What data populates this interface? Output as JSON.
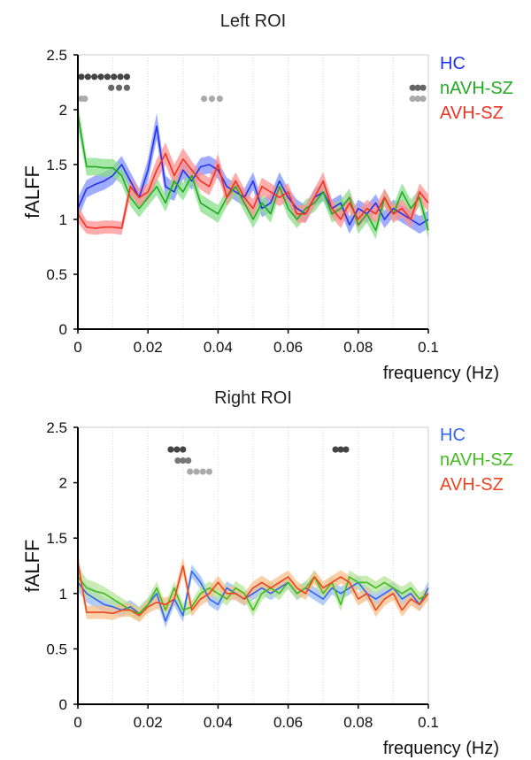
{
  "chart_data": [
    {
      "type": "line",
      "title": "Left ROI",
      "xlabel": "frequency (Hz)",
      "ylabel": "fALFF",
      "xlim": [
        0,
        0.1
      ],
      "ylim": [
        0,
        2.5
      ],
      "xticks": [
        "0",
        "0.02",
        "0.04",
        "0.06",
        "0.08",
        "0.1"
      ],
      "yticks": [
        "0",
        "0.5",
        "1",
        "1.5",
        "2",
        "2.5"
      ],
      "grid": "x",
      "legend_position": "right",
      "x": [
        0,
        0.0025,
        0.005,
        0.0075,
        0.01,
        0.0125,
        0.015,
        0.0175,
        0.02,
        0.0225,
        0.025,
        0.0275,
        0.03,
        0.0325,
        0.035,
        0.0375,
        0.04,
        0.0425,
        0.045,
        0.0475,
        0.05,
        0.0525,
        0.055,
        0.0575,
        0.06,
        0.0625,
        0.065,
        0.0675,
        0.07,
        0.0725,
        0.075,
        0.0775,
        0.08,
        0.0825,
        0.085,
        0.0875,
        0.09,
        0.0925,
        0.095,
        0.0975,
        0.1
      ],
      "series": [
        {
          "name": "HC",
          "color": "#2233ee",
          "band_color": "#8090ff",
          "values": [
            1.1,
            1.28,
            1.32,
            1.35,
            1.4,
            1.5,
            1.35,
            1.2,
            1.45,
            1.85,
            1.3,
            1.25,
            1.45,
            1.35,
            1.48,
            1.5,
            1.45,
            1.3,
            1.25,
            1.2,
            1.35,
            1.1,
            1.15,
            1.35,
            1.2,
            1.1,
            1.05,
            1.2,
            1.25,
            1.1,
            1.15,
            0.95,
            1.1,
            1.05,
            1.15,
            1.0,
            1.1,
            1.05,
            1.0,
            0.95,
            1.0
          ],
          "band": [
            0.1,
            0.08,
            0.08,
            0.08,
            0.08,
            0.08,
            0.08,
            0.08,
            0.1,
            0.12,
            0.1,
            0.08,
            0.08,
            0.08,
            0.08,
            0.08,
            0.08,
            0.08,
            0.08,
            0.08,
            0.08,
            0.08,
            0.08,
            0.08,
            0.08,
            0.08,
            0.08,
            0.08,
            0.08,
            0.08,
            0.08,
            0.08,
            0.08,
            0.08,
            0.08,
            0.08,
            0.08,
            0.08,
            0.08,
            0.08,
            0.08
          ]
        },
        {
          "name": "nAVH-SZ",
          "color": "#22aa22",
          "band_color": "#88dd88",
          "values": [
            1.95,
            1.48,
            1.48,
            1.47,
            1.47,
            1.4,
            1.2,
            1.1,
            1.2,
            1.3,
            1.15,
            1.35,
            1.25,
            1.4,
            1.15,
            1.1,
            1.05,
            1.2,
            1.3,
            1.15,
            1.0,
            1.15,
            1.05,
            1.3,
            1.1,
            1.0,
            1.1,
            1.15,
            1.25,
            1.05,
            1.1,
            1.2,
            0.95,
            1.05,
            0.9,
            1.2,
            1.05,
            1.25,
            1.1,
            1.2,
            0.9
          ],
          "band": [
            0.12,
            0.08,
            0.08,
            0.08,
            0.08,
            0.08,
            0.08,
            0.08,
            0.08,
            0.08,
            0.08,
            0.08,
            0.08,
            0.08,
            0.08,
            0.08,
            0.08,
            0.08,
            0.08,
            0.08,
            0.08,
            0.08,
            0.08,
            0.08,
            0.08,
            0.08,
            0.08,
            0.08,
            0.08,
            0.08,
            0.08,
            0.08,
            0.08,
            0.08,
            0.08,
            0.08,
            0.08,
            0.08,
            0.08,
            0.08,
            0.08
          ]
        },
        {
          "name": "AVH-SZ",
          "color": "#ee3322",
          "band_color": "#ff9090",
          "values": [
            1.05,
            0.93,
            0.92,
            0.93,
            0.93,
            0.92,
            1.3,
            1.2,
            1.25,
            1.45,
            1.6,
            1.4,
            1.55,
            1.45,
            1.35,
            1.3,
            1.5,
            1.2,
            1.35,
            1.2,
            1.1,
            1.3,
            1.25,
            1.2,
            1.25,
            1.05,
            1.05,
            1.2,
            1.35,
            1.1,
            1.0,
            1.15,
            1.0,
            1.1,
            1.05,
            1.2,
            1.05,
            1.1,
            1.0,
            1.25,
            1.15
          ],
          "band": [
            0.08,
            0.06,
            0.06,
            0.06,
            0.06,
            0.06,
            0.08,
            0.08,
            0.08,
            0.1,
            0.1,
            0.1,
            0.1,
            0.08,
            0.08,
            0.08,
            0.1,
            0.08,
            0.08,
            0.08,
            0.08,
            0.08,
            0.08,
            0.08,
            0.08,
            0.08,
            0.08,
            0.08,
            0.08,
            0.08,
            0.08,
            0.08,
            0.08,
            0.08,
            0.08,
            0.08,
            0.08,
            0.08,
            0.08,
            0.08,
            0.08
          ]
        }
      ],
      "significance_markers": [
        {
          "x_start": 0.0,
          "x_end": 0.015,
          "level": 2.3,
          "color": "#444444"
        },
        {
          "x_start": 0.0085,
          "x_end": 0.015,
          "level": 2.2,
          "color": "#666666"
        },
        {
          "x_start": 0.0,
          "x_end": 0.003,
          "level": 2.1,
          "color": "#aaaaaa"
        },
        {
          "x_start": 0.035,
          "x_end": 0.0415,
          "level": 2.1,
          "color": "#aaaaaa"
        },
        {
          "x_start": 0.0945,
          "x_end": 0.0995,
          "level": 2.2,
          "color": "#666666"
        },
        {
          "x_start": 0.0945,
          "x_end": 0.0995,
          "level": 2.1,
          "color": "#aaaaaa"
        }
      ]
    },
    {
      "type": "line",
      "title": "Right ROI",
      "xlabel": "frequency (Hz)",
      "ylabel": "fALFF",
      "xlim": [
        0,
        0.1
      ],
      "ylim": [
        0,
        2.5
      ],
      "xticks": [
        "0",
        "0.02",
        "0.04",
        "0.06",
        "0.08",
        "0.1"
      ],
      "yticks": [
        "0",
        "0.5",
        "1",
        "1.5",
        "2",
        "2.5"
      ],
      "grid": "x",
      "legend_position": "right",
      "x": [
        0,
        0.0025,
        0.005,
        0.0075,
        0.01,
        0.0125,
        0.015,
        0.0175,
        0.02,
        0.0225,
        0.025,
        0.0275,
        0.03,
        0.0325,
        0.035,
        0.0375,
        0.04,
        0.0425,
        0.045,
        0.0475,
        0.05,
        0.0525,
        0.055,
        0.0575,
        0.06,
        0.0625,
        0.065,
        0.0675,
        0.07,
        0.0725,
        0.075,
        0.0775,
        0.08,
        0.0825,
        0.085,
        0.0875,
        0.09,
        0.0925,
        0.095,
        0.0975,
        0.1
      ],
      "series": [
        {
          "name": "HC",
          "color": "#3366ee",
          "band_color": "#99bbf5",
          "values": [
            1.1,
            1.0,
            0.95,
            0.9,
            0.88,
            0.85,
            0.88,
            0.82,
            0.9,
            1.0,
            0.75,
            0.95,
            0.8,
            1.2,
            1.1,
            0.95,
            0.9,
            1.05,
            1.0,
            0.95,
            1.0,
            1.05,
            1.0,
            1.05,
            1.1,
            1.0,
            1.05,
            1.0,
            0.95,
            1.05,
            1.0,
            1.05,
            1.1,
            1.0,
            0.95,
            1.0,
            1.05,
            0.95,
            1.0,
            0.9,
            1.05
          ],
          "band": [
            0.08,
            0.08,
            0.08,
            0.06,
            0.06,
            0.06,
            0.06,
            0.06,
            0.06,
            0.06,
            0.06,
            0.06,
            0.06,
            0.06,
            0.06,
            0.06,
            0.06,
            0.06,
            0.06,
            0.06,
            0.06,
            0.06,
            0.06,
            0.06,
            0.06,
            0.06,
            0.06,
            0.06,
            0.06,
            0.06,
            0.06,
            0.06,
            0.06,
            0.06,
            0.06,
            0.06,
            0.06,
            0.06,
            0.06,
            0.06,
            0.06
          ]
        },
        {
          "name": "nAVH-SZ",
          "color": "#44bb22",
          "band_color": "#b5e69a",
          "values": [
            1.15,
            1.05,
            1.02,
            1.0,
            0.95,
            0.9,
            0.85,
            0.82,
            0.9,
            1.05,
            0.85,
            1.05,
            0.85,
            0.88,
            1.0,
            1.05,
            1.0,
            0.95,
            1.05,
            1.0,
            0.85,
            1.0,
            1.05,
            1.0,
            1.1,
            1.0,
            1.05,
            1.15,
            1.0,
            1.1,
            0.9,
            1.15,
            1.1,
            1.1,
            1.05,
            1.1,
            1.05,
            1.0,
            1.05,
            0.95,
            1.0
          ],
          "band": [
            0.1,
            0.08,
            0.08,
            0.06,
            0.06,
            0.06,
            0.06,
            0.06,
            0.06,
            0.06,
            0.06,
            0.06,
            0.06,
            0.06,
            0.06,
            0.06,
            0.06,
            0.06,
            0.06,
            0.06,
            0.06,
            0.06,
            0.06,
            0.06,
            0.06,
            0.06,
            0.06,
            0.06,
            0.06,
            0.06,
            0.06,
            0.06,
            0.06,
            0.06,
            0.06,
            0.06,
            0.06,
            0.06,
            0.06,
            0.06,
            0.06
          ]
        },
        {
          "name": "AVH-SZ",
          "color": "#ee4422",
          "band_color": "#f7c08a",
          "values": [
            1.28,
            0.83,
            0.83,
            0.83,
            0.82,
            0.85,
            0.85,
            0.8,
            0.88,
            0.92,
            0.9,
            0.95,
            1.25,
            0.85,
            0.95,
            1.0,
            1.1,
            1.0,
            1.0,
            0.95,
            1.05,
            1.1,
            1.05,
            1.1,
            1.15,
            1.05,
            1.0,
            1.15,
            1.05,
            1.1,
            1.15,
            1.1,
            0.95,
            1.0,
            0.85,
            0.95,
            1.0,
            0.85,
            0.95,
            0.9,
            1.0
          ],
          "band": [
            0.1,
            0.06,
            0.06,
            0.06,
            0.06,
            0.06,
            0.06,
            0.06,
            0.06,
            0.06,
            0.06,
            0.06,
            0.08,
            0.06,
            0.06,
            0.06,
            0.06,
            0.06,
            0.06,
            0.06,
            0.06,
            0.06,
            0.06,
            0.06,
            0.06,
            0.06,
            0.06,
            0.06,
            0.06,
            0.06,
            0.06,
            0.06,
            0.06,
            0.06,
            0.06,
            0.06,
            0.06,
            0.06,
            0.06,
            0.06,
            0.06
          ]
        }
      ],
      "significance_markers": [
        {
          "x_start": 0.0255,
          "x_end": 0.031,
          "level": 2.3,
          "color": "#444444"
        },
        {
          "x_start": 0.0275,
          "x_end": 0.0325,
          "level": 2.2,
          "color": "#777777"
        },
        {
          "x_start": 0.031,
          "x_end": 0.0385,
          "level": 2.1,
          "color": "#aaaaaa"
        },
        {
          "x_start": 0.0725,
          "x_end": 0.0775,
          "level": 2.3,
          "color": "#444444"
        }
      ]
    }
  ]
}
